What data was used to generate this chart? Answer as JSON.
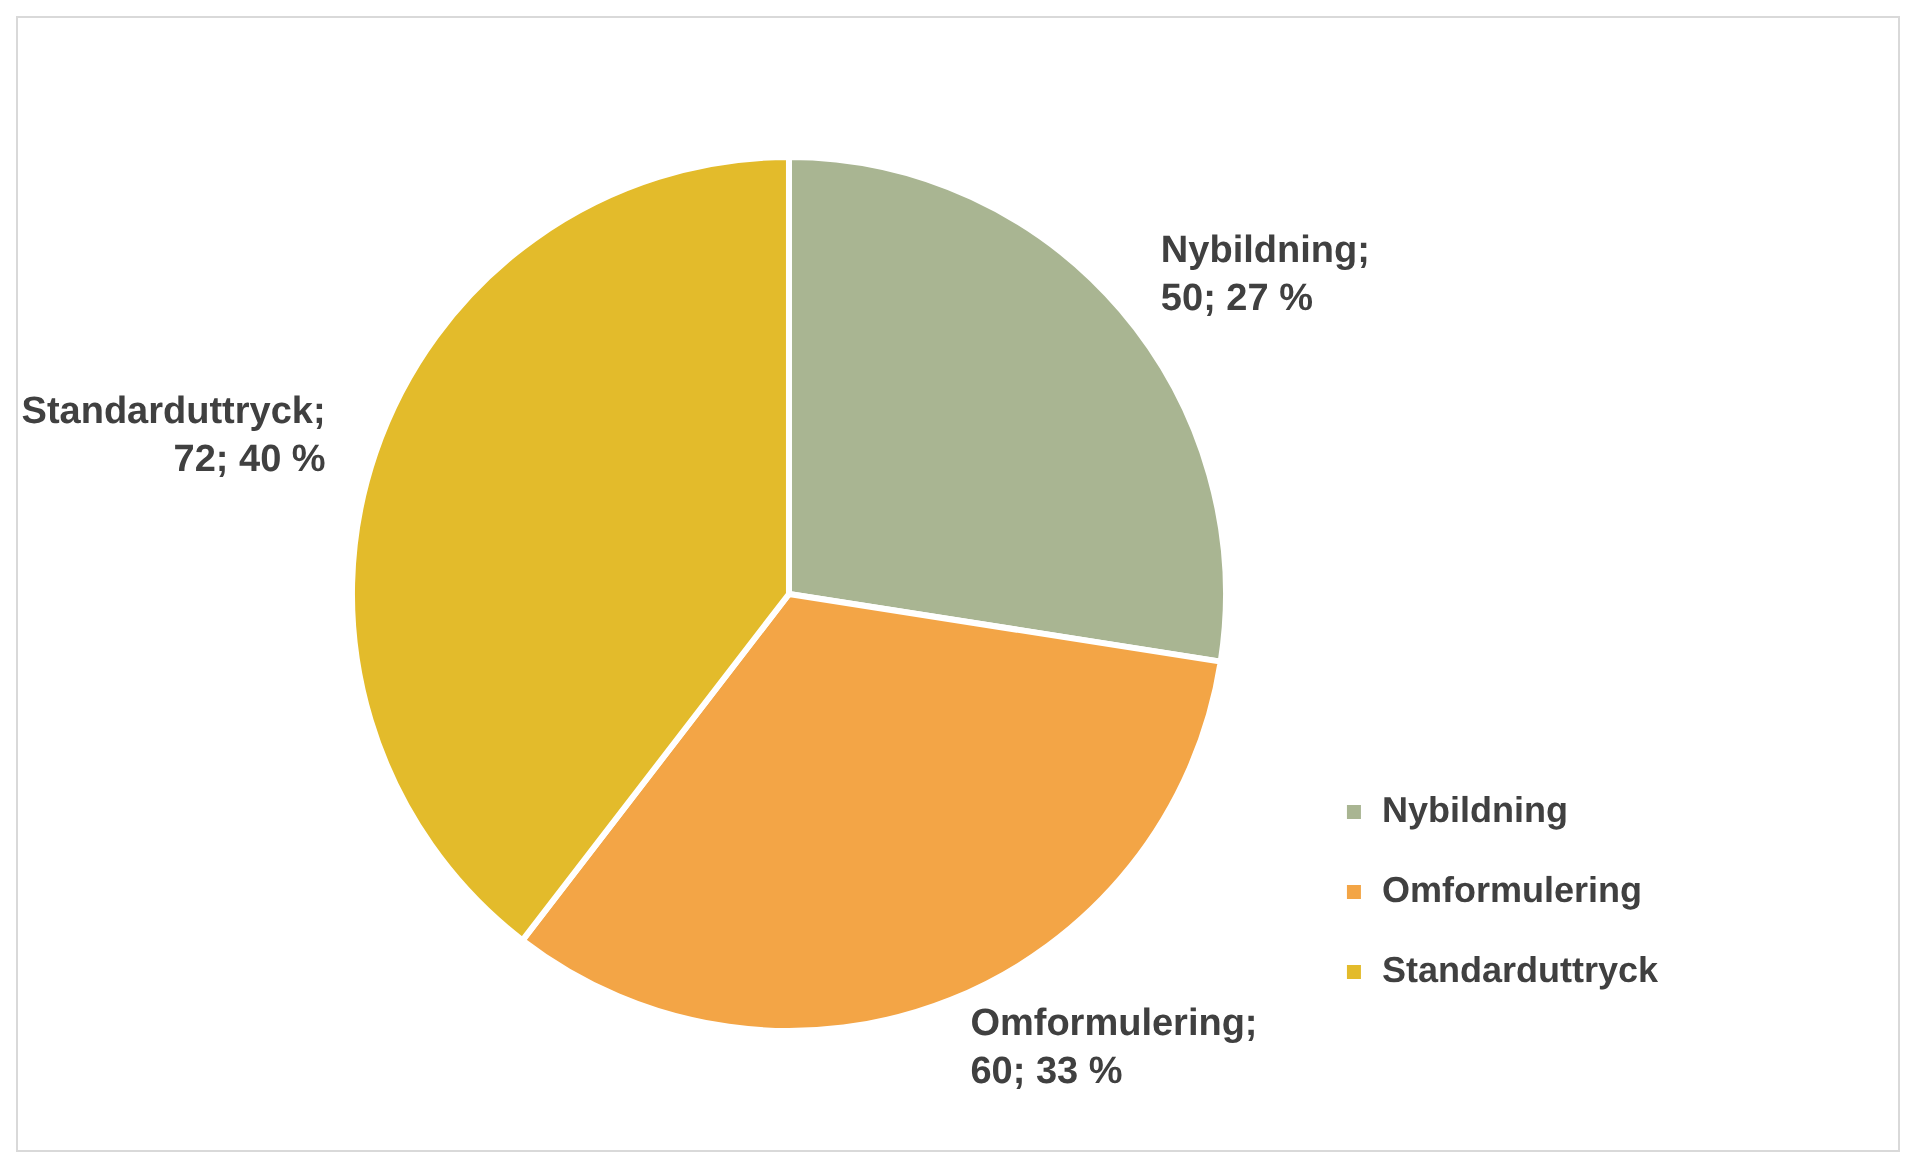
{
  "chart_data": {
    "type": "pie",
    "categories": [
      "Nybildning",
      "Omformulering",
      "Standarduttryck"
    ],
    "values": [
      50,
      60,
      72
    ],
    "colors": [
      "#a9b592",
      "#f3a546",
      "#e3bb2b"
    ],
    "value_labels": [
      "Nybildning; 50; 27 %",
      "Omformulering; 60; 33 %",
      "Standarduttryck; 72; 40 %"
    ],
    "legend": "bottom right"
  }
}
